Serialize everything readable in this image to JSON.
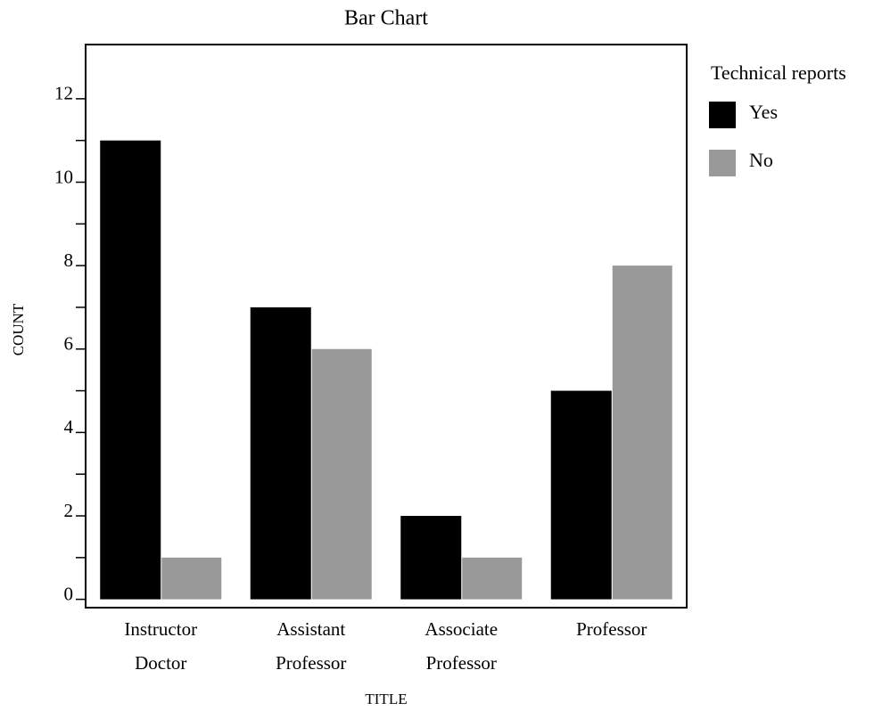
{
  "chart_data": {
    "type": "bar",
    "title": "Bar Chart",
    "x_label": "TITLE",
    "y_label": "COUNT",
    "categories": [
      [
        "Instructor",
        "Doctor"
      ],
      [
        "Assistant",
        "Professor"
      ],
      [
        "Associate",
        "Professor"
      ],
      [
        "Professor"
      ]
    ],
    "series": [
      {
        "name": "Yes",
        "color": "#000000",
        "values": [
          11,
          7,
          2,
          5
        ]
      },
      {
        "name": "No",
        "color": "#999999",
        "values": [
          1,
          6,
          1,
          8
        ]
      }
    ],
    "legend_title": "Technical reports",
    "legend": "outside-right",
    "ylim": [
      -0.2,
      13.3
    ],
    "yticks": [
      0,
      2,
      4,
      6,
      8,
      10,
      12
    ],
    "yminorticks": [
      1,
      3,
      5,
      7,
      9,
      11
    ]
  }
}
